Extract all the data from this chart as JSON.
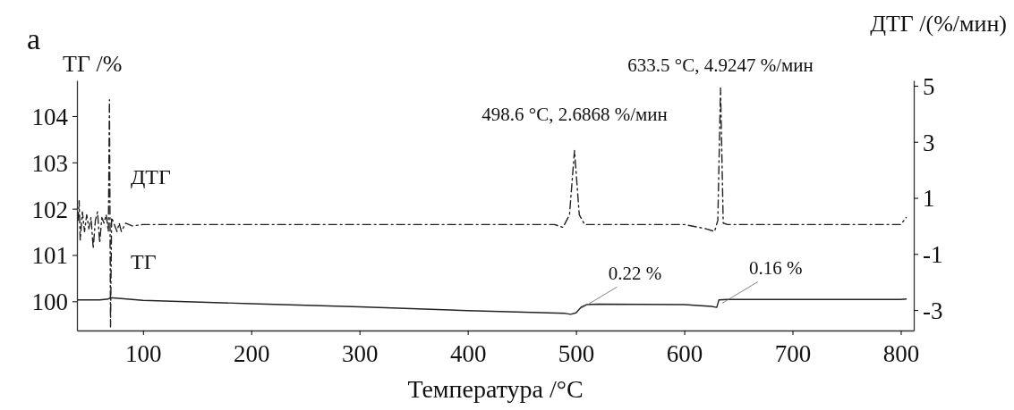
{
  "chart_data": {
    "type": "line",
    "title": "а",
    "xlabel": "Температура /°C",
    "ylabel": "ТГ /%",
    "y2label": "ДТГ /(%/мин)",
    "xlim": [
      39,
      812
    ],
    "xticks": [
      100,
      200,
      300,
      400,
      500,
      600,
      700,
      800
    ],
    "ylim": [
      99.37,
      104.77
    ],
    "yticks": [
      100,
      101,
      102,
      103,
      104
    ],
    "y2lim": [
      -3.73,
      5.19
    ],
    "y2ticks": [
      5,
      3,
      1,
      -1,
      -3
    ],
    "legend": false,
    "grid": false,
    "series": [
      {
        "name": "ДТГ",
        "axis": "y2",
        "color": "#222222",
        "line_style": "dashed",
        "x": [
          40,
          41,
          42,
          44,
          46,
          48,
          50,
          52,
          54,
          56,
          58,
          60,
          62,
          64,
          66,
          68,
          69,
          70,
          71,
          74,
          76,
          78,
          80,
          84,
          90,
          100,
          150,
          200,
          250,
          300,
          350,
          400,
          450,
          480,
          488,
          494,
          498.6,
          503,
          508,
          520,
          560,
          600,
          620,
          628,
          631,
          633.5,
          636,
          640,
          700,
          750,
          800,
          805
        ],
        "values": [
          0.2,
          0.9,
          -0.5,
          0.5,
          -0.2,
          0.4,
          -0.1,
          0.3,
          -0.8,
          0.2,
          0.5,
          -0.6,
          0.3,
          0.1,
          0.4,
          -0.2,
          4.5,
          -3.6,
          0.3,
          0.0,
          -0.2,
          0.1,
          -0.2,
          0.1,
          0.0,
          0.05,
          0.05,
          0.05,
          0.05,
          0.05,
          0.05,
          0.05,
          0.05,
          0.05,
          -0.05,
          0.4,
          2.69,
          0.4,
          0.05,
          0.05,
          0.05,
          0.05,
          -0.1,
          -0.2,
          0.2,
          4.92,
          0.1,
          0.05,
          0.05,
          0.05,
          0.05,
          0.3
        ]
      },
      {
        "name": "ТГ",
        "color": "#222222",
        "line_style": "solid",
        "x": [
          40,
          60,
          68,
          70,
          75,
          100,
          200,
          300,
          400,
          490,
          495,
          500,
          505,
          510,
          520,
          600,
          625,
          630,
          632,
          640,
          700,
          800,
          805
        ],
        "values": [
          100.03,
          100.03,
          100.05,
          100.08,
          100.07,
          100.02,
          99.95,
          99.88,
          99.8,
          99.74,
          99.72,
          99.75,
          99.88,
          99.93,
          99.94,
          99.93,
          99.89,
          99.87,
          100.03,
          100.04,
          100.04,
          100.04,
          100.05
        ]
      }
    ],
    "annotations": [
      "498.6 °C, 2.6868 %/мин",
      "633.5 °C, 4.9247 %/мин",
      {
        "text": "0.22 %",
        "x": 505,
        "y": 99.85
      },
      {
        "text": "0.16 %",
        "x": 635,
        "y": 99.96
      }
    ]
  }
}
